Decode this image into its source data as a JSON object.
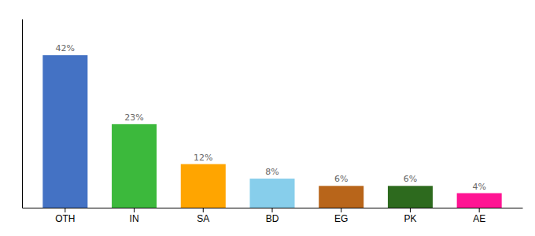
{
  "chart_data": {
    "type": "bar",
    "categories": [
      "OTH",
      "IN",
      "SA",
      "BD",
      "EG",
      "PK",
      "AE"
    ],
    "values": [
      42,
      23,
      12,
      8,
      6,
      6,
      4
    ],
    "value_labels": [
      "42%",
      "23%",
      "12%",
      "8%",
      "6%",
      "6%",
      "4%"
    ],
    "colors": [
      "#4472C4",
      "#3CB93C",
      "#FFA500",
      "#87CEEB",
      "#B8651A",
      "#2D6A1E",
      "#FF1493"
    ],
    "ylim": [
      0,
      52
    ],
    "data_labels": true,
    "tick_labels": "x",
    "grid": false
  }
}
